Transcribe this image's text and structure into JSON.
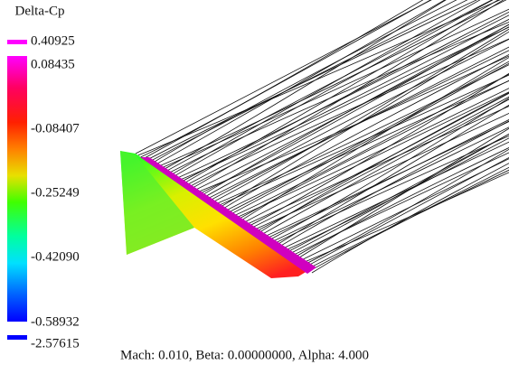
{
  "legend": {
    "title": "Delta-Cp",
    "labels": [
      "0.40925",
      "0.08435",
      "-0.08407",
      "-0.25249",
      "-0.42090",
      "-0.58932",
      "-2.57615"
    ]
  },
  "footer": "Mach: 0.010, Beta: 0.00000000, Alpha: 4.000"
}
